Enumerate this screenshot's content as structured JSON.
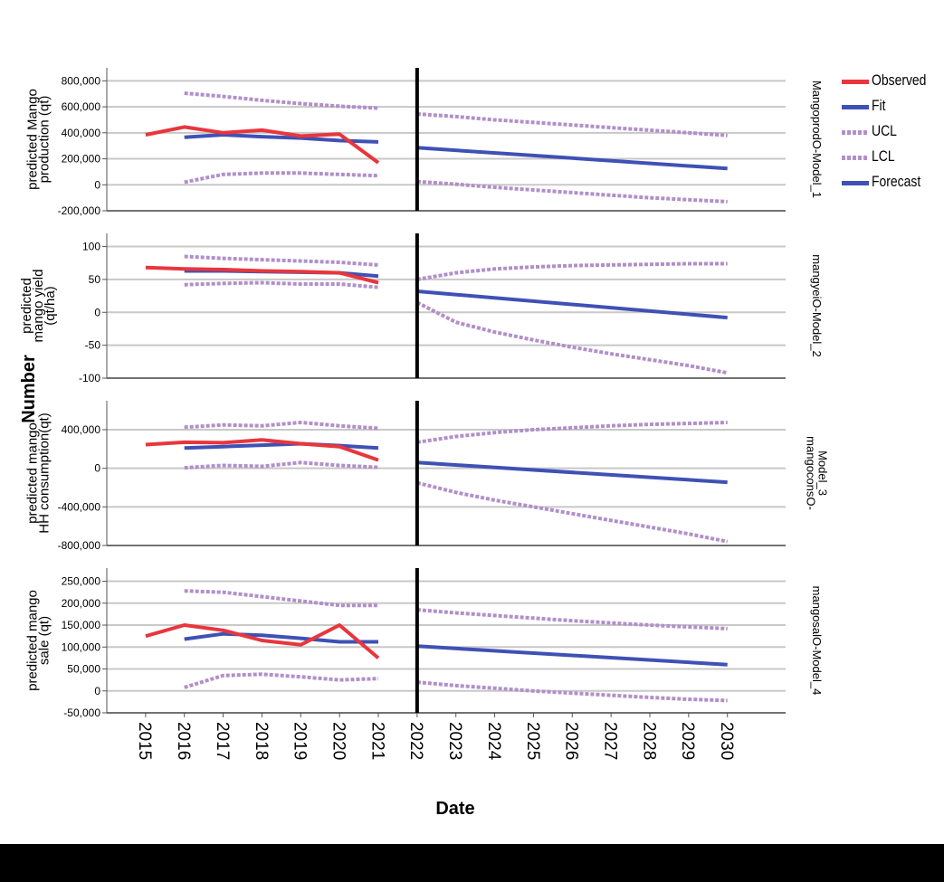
{
  "colors": {
    "observed": "#e8363d",
    "fit": "#3f51b5",
    "ucl": "#b28fc9",
    "lcl": "#b28fc9",
    "forecast": "#3f51b5",
    "grid": "#c8c8c8",
    "axis": "#555555",
    "divider": "#000000"
  },
  "legend": [
    {
      "label": "Observed",
      "style": "solid",
      "color_key": "observed"
    },
    {
      "label": "Fit",
      "style": "solid",
      "color_key": "fit"
    },
    {
      "label": "UCL",
      "style": "dotted",
      "color_key": "ucl"
    },
    {
      "label": "LCL",
      "style": "dotted",
      "color_key": "lcl"
    },
    {
      "label": "Forecast",
      "style": "solid",
      "color_key": "forecast"
    }
  ],
  "chart_data": {
    "type": "line",
    "xlabel": "Date",
    "ylabel": "Number",
    "x": [
      2015,
      2016,
      2017,
      2018,
      2019,
      2020,
      2021,
      2022,
      2023,
      2024,
      2025,
      2026,
      2027,
      2028,
      2029,
      2030
    ],
    "xlim": [
      2014,
      2031.5
    ],
    "forecast_start": 2022,
    "panels": [
      {
        "ylabel_lines": [
          "predicted Mango",
          "production (qt)"
        ],
        "model_lines": [
          "MangoprodO-Model_1"
        ],
        "ylim": [
          -200000,
          900000
        ],
        "yticks": [
          -200000,
          0,
          200000,
          400000,
          600000,
          800000
        ],
        "ytick_labels": [
          "-200,000",
          "0",
          "200,000",
          "400,000",
          "600,000",
          "800,000"
        ],
        "observed": {
          "x": [
            2015,
            2016,
            2017,
            2018,
            2019,
            2020,
            2021
          ],
          "y": [
            385000,
            445000,
            400000,
            420000,
            375000,
            390000,
            170000
          ]
        },
        "fit": {
          "x": [
            2016,
            2017,
            2018,
            2019,
            2020,
            2021
          ],
          "y": [
            365000,
            385000,
            370000,
            360000,
            340000,
            330000
          ]
        },
        "fit_ucl": {
          "x": [
            2016,
            2017,
            2018,
            2019,
            2020,
            2021
          ],
          "y": [
            705000,
            680000,
            650000,
            625000,
            605000,
            590000
          ]
        },
        "fit_lcl": {
          "x": [
            2016,
            2017,
            2018,
            2019,
            2020,
            2021
          ],
          "y": [
            20000,
            80000,
            90000,
            90000,
            80000,
            70000
          ]
        },
        "forecast": {
          "x": [
            2022,
            2030
          ],
          "y": [
            285000,
            125000
          ]
        },
        "fc_ucl": {
          "x": [
            2022,
            2023,
            2024,
            2025,
            2026,
            2027,
            2028,
            2029,
            2030
          ],
          "y": [
            545000,
            525000,
            500000,
            480000,
            460000,
            440000,
            420000,
            400000,
            380000
          ]
        },
        "fc_lcl": {
          "x": [
            2022,
            2023,
            2024,
            2025,
            2026,
            2027,
            2028,
            2029,
            2030
          ],
          "y": [
            25000,
            5000,
            -20000,
            -40000,
            -60000,
            -80000,
            -100000,
            -115000,
            -130000
          ]
        }
      },
      {
        "ylabel_lines": [
          "predicted",
          "mango yield",
          "(qt/ha)"
        ],
        "model_lines": [
          "mangyeiO-Model_2"
        ],
        "ylim": [
          -100,
          120
        ],
        "yticks": [
          -100,
          -50,
          0,
          50,
          100
        ],
        "ytick_labels": [
          "-100",
          "-50",
          "0",
          "50",
          "100"
        ],
        "observed": {
          "x": [
            2015,
            2016,
            2017,
            2018,
            2019,
            2020,
            2021
          ],
          "y": [
            68,
            66,
            65,
            63,
            62,
            60,
            45
          ]
        },
        "fit": {
          "x": [
            2016,
            2017,
            2018,
            2019,
            2020,
            2021
          ],
          "y": [
            63,
            63,
            62,
            61,
            60,
            55
          ]
        },
        "fit_ucl": {
          "x": [
            2016,
            2017,
            2018,
            2019,
            2020,
            2021
          ],
          "y": [
            85,
            82,
            80,
            78,
            76,
            72
          ]
        },
        "fit_lcl": {
          "x": [
            2016,
            2017,
            2018,
            2019,
            2020,
            2021
          ],
          "y": [
            42,
            44,
            45,
            43,
            43,
            38
          ]
        },
        "forecast": {
          "x": [
            2022,
            2030
          ],
          "y": [
            32,
            -8
          ]
        },
        "fc_ucl": {
          "x": [
            2022,
            2023,
            2024,
            2025,
            2026,
            2027,
            2028,
            2029,
            2030
          ],
          "y": [
            50,
            60,
            66,
            69,
            71,
            72,
            73,
            74,
            74
          ]
        },
        "fc_lcl": {
          "x": [
            2022,
            2023,
            2024,
            2025,
            2026,
            2027,
            2028,
            2029,
            2030
          ],
          "y": [
            15,
            -15,
            -30,
            -42,
            -53,
            -63,
            -72,
            -81,
            -92
          ]
        }
      },
      {
        "ylabel_lines": [
          "predicted mango",
          "HH consumption(qt)"
        ],
        "model_lines": [
          "mangoconsO-",
          "Model_3"
        ],
        "ylim": [
          -800000,
          700000
        ],
        "yticks": [
          -800000,
          -400000,
          0,
          400000
        ],
        "ytick_labels": [
          "-800,000",
          "-400,000",
          "0",
          "400,000"
        ],
        "observed": {
          "x": [
            2015,
            2016,
            2017,
            2018,
            2019,
            2020,
            2021
          ],
          "y": [
            245000,
            270000,
            265000,
            295000,
            255000,
            225000,
            85000
          ]
        },
        "fit": {
          "x": [
            2016,
            2017,
            2018,
            2019,
            2020,
            2021
          ],
          "y": [
            210000,
            225000,
            240000,
            255000,
            235000,
            210000
          ]
        },
        "fit_ucl": {
          "x": [
            2016,
            2017,
            2018,
            2019,
            2020,
            2021
          ],
          "y": [
            425000,
            450000,
            440000,
            475000,
            440000,
            415000
          ]
        },
        "fit_lcl": {
          "x": [
            2016,
            2017,
            2018,
            2019,
            2020,
            2021
          ],
          "y": [
            5000,
            30000,
            20000,
            60000,
            30000,
            10000
          ]
        },
        "forecast": {
          "x": [
            2022,
            2030
          ],
          "y": [
            60000,
            -145000
          ]
        },
        "fc_ucl": {
          "x": [
            2022,
            2023,
            2024,
            2025,
            2026,
            2027,
            2028,
            2029,
            2030
          ],
          "y": [
            270000,
            330000,
            370000,
            400000,
            420000,
            440000,
            455000,
            465000,
            475000
          ]
        },
        "fc_lcl": {
          "x": [
            2022,
            2023,
            2024,
            2025,
            2026,
            2027,
            2028,
            2029,
            2030
          ],
          "y": [
            -150000,
            -250000,
            -330000,
            -400000,
            -470000,
            -540000,
            -610000,
            -680000,
            -760000
          ]
        }
      },
      {
        "ylabel_lines": [
          "predicted mango",
          "sale (qt)"
        ],
        "model_lines": [
          "mangosalO-Model_4"
        ],
        "ylim": [
          -50000,
          280000
        ],
        "yticks": [
          -50000,
          0,
          50000,
          100000,
          150000,
          200000,
          250000
        ],
        "ytick_labels": [
          "-50,000",
          "0",
          "50,000",
          "100,000",
          "150,000",
          "200,000",
          "250,000"
        ],
        "observed": {
          "x": [
            2015,
            2016,
            2017,
            2018,
            2019,
            2020,
            2021
          ],
          "y": [
            125000,
            150000,
            138000,
            115000,
            105000,
            150000,
            75000
          ]
        },
        "fit": {
          "x": [
            2016,
            2017,
            2018,
            2019,
            2020,
            2021
          ],
          "y": [
            118000,
            130000,
            127000,
            120000,
            112000,
            112000
          ]
        },
        "fit_ucl": {
          "x": [
            2016,
            2017,
            2018,
            2019,
            2020,
            2021
          ],
          "y": [
            228000,
            225000,
            215000,
            205000,
            195000,
            195000
          ]
        },
        "fit_lcl": {
          "x": [
            2016,
            2017,
            2018,
            2019,
            2020,
            2021
          ],
          "y": [
            8000,
            35000,
            38000,
            32000,
            25000,
            28000
          ]
        },
        "forecast": {
          "x": [
            2022,
            2030
          ],
          "y": [
            102000,
            60000
          ]
        },
        "fc_ucl": {
          "x": [
            2022,
            2023,
            2024,
            2025,
            2026,
            2027,
            2028,
            2029,
            2030
          ],
          "y": [
            185000,
            178000,
            172000,
            166000,
            160000,
            155000,
            150000,
            146000,
            142000
          ]
        },
        "fc_lcl": {
          "x": [
            2022,
            2023,
            2024,
            2025,
            2026,
            2027,
            2028,
            2029,
            2030
          ],
          "y": [
            20000,
            12000,
            6000,
            0,
            -5000,
            -10000,
            -15000,
            -19000,
            -22000
          ]
        }
      }
    ]
  }
}
